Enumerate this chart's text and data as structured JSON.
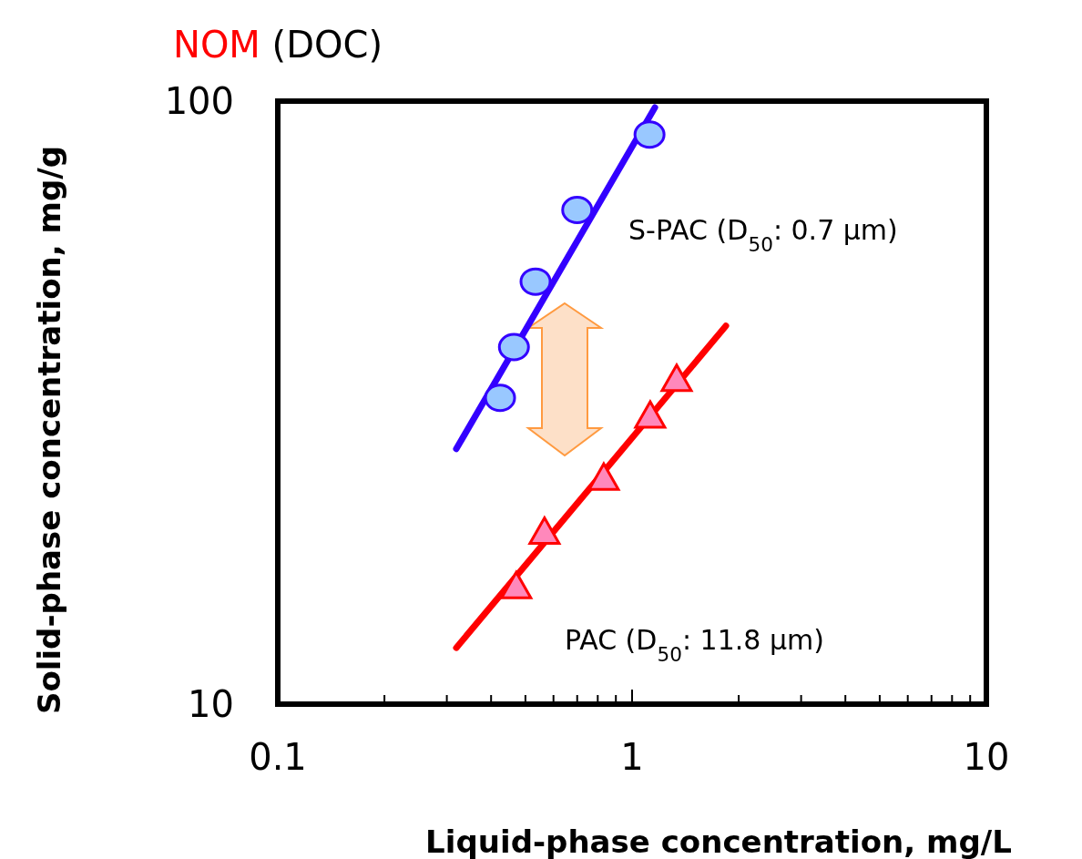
{
  "chart_data": {
    "type": "scatter",
    "title": "NOM",
    "subtitle": "(DOC)",
    "xlabel": "Liquid-phase concentration, mg/L",
    "ylabel": "Solid-phase concentration, mg/g",
    "log": "xy",
    "xlim": [
      0.1,
      10
    ],
    "ylim": [
      10,
      100
    ],
    "xticks": [
      0.1,
      {
        "value": 0.2,
        "label": null
      },
      {
        "value": 0.3,
        "label": null
      },
      {
        "value": 0.4,
        "label": null
      },
      {
        "value": 0.5,
        "label": null
      },
      {
        "value": 0.6,
        "label": null
      },
      {
        "value": 0.7,
        "label": null
      },
      {
        "value": 0.8,
        "label": null
      },
      {
        "value": 0.9,
        "label": null
      },
      1,
      {
        "value": 2,
        "label": null
      },
      {
        "value": 3,
        "label": null
      },
      {
        "value": 4,
        "label": null
      },
      {
        "value": 5,
        "label": null
      },
      {
        "value": 6,
        "label": null
      },
      {
        "value": 7,
        "label": null
      },
      {
        "value": 8,
        "label": null
      },
      {
        "value": 9,
        "label": null
      },
      10
    ],
    "yticks": [
      10,
      100
    ],
    "grid": false,
    "legend": false,
    "series": [
      {
        "type": "scatter",
        "marker": "circle",
        "color": "#99c8ff",
        "x": [
          0.424,
          0.464,
          0.534,
          0.7,
          1.12
        ],
        "values": [
          32.2,
          39.1,
          50.2,
          66,
          88
        ]
      },
      {
        "type": "line",
        "name": "S-PAC (D$_{50}$: 0.7 μm)",
        "marker": "none",
        "line_style": "solid",
        "color": "#3300ff",
        "x": [
          0.319,
          1.16
        ],
        "values": [
          26.5,
          97.6
        ]
      },
      {
        "type": "scatter",
        "marker": "triangle",
        "color": "#ff88bb",
        "x": [
          0.471,
          0.566,
          0.832,
          1.125,
          1.336
        ],
        "values": [
          15.6,
          19.2,
          23.6,
          29.9,
          34.4
        ]
      },
      {
        "type": "line",
        "name": "PAC (D$_{50}$: 11.8 μm)",
        "marker": "none",
        "line_style": "solid",
        "color": "#ff0000",
        "x": [
          0.319,
          1.84
        ],
        "values": [
          12.4,
          42.4
        ]
      }
    ]
  }
}
